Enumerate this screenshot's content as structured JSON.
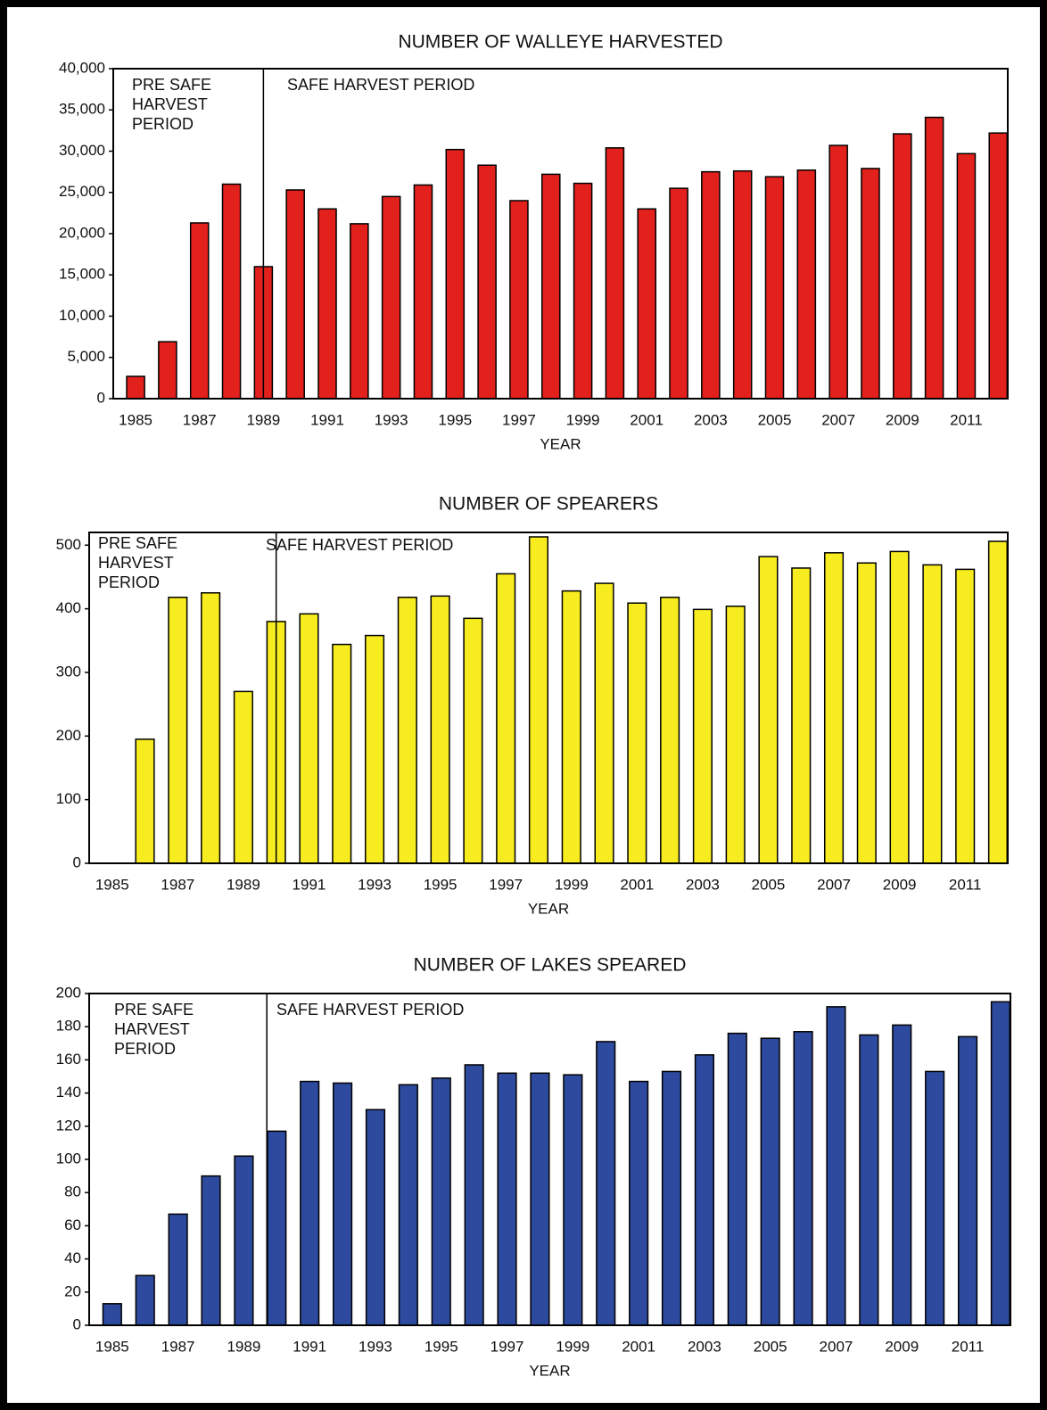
{
  "chart_data": [
    {
      "type": "bar",
      "title": "NUMBER OF WALLEYE HARVESTED",
      "x_label": "YEAR",
      "color": "#e3211c",
      "grid": false,
      "categories": [
        "1985",
        null,
        "1987",
        null,
        "1989",
        null,
        "1991",
        null,
        "1993",
        null,
        "1995",
        null,
        "1997",
        null,
        "1999",
        null,
        "2001",
        null,
        "2003",
        null,
        "2005",
        null,
        "2007",
        null,
        "2009",
        null,
        "2011",
        null
      ],
      "values": [
        2700,
        6900,
        21300,
        26000,
        16000,
        25300,
        23000,
        21200,
        24500,
        25900,
        30200,
        28300,
        24000,
        27200,
        26100,
        30400,
        23000,
        25500,
        27500,
        27600,
        26900,
        27700,
        30700,
        27900,
        32100,
        34100,
        29700,
        32200
      ],
      "ylim": [
        0,
        40000
      ],
      "yticks": [
        0,
        {
          "value": 5000,
          "label": "5,000"
        },
        {
          "value": 10000,
          "label": "10,000"
        },
        {
          "value": 15000,
          "label": "15,000"
        },
        {
          "value": 20000,
          "label": "20,000"
        },
        {
          "value": 25000,
          "label": "25,000"
        },
        {
          "value": 30000,
          "label": "30,000"
        },
        {
          "value": 35000,
          "label": "35,000"
        },
        {
          "value": 40000,
          "label": "40,000"
        }
      ],
      "annotations": [
        {
          "lines": [
            "PRE SAFE",
            "HARVEST",
            "PERIOD"
          ]
        },
        {
          "lines": [
            "SAFE HARVEST PERIOD"
          ]
        }
      ]
    },
    {
      "type": "bar",
      "title": "NUMBER OF SPEARERS",
      "x_label": "YEAR",
      "color": "#f7ec1f",
      "grid": false,
      "categories": [
        "1985",
        null,
        "1987",
        null,
        "1989",
        null,
        "1991",
        null,
        "1993",
        null,
        "1995",
        null,
        "1997",
        null,
        "1999",
        null,
        "2001",
        null,
        "2003",
        null,
        "2005",
        null,
        "2007",
        null,
        "2009",
        null,
        "2011",
        null
      ],
      "values": [
        null,
        195,
        418,
        425,
        270,
        380,
        392,
        344,
        358,
        418,
        420,
        385,
        455,
        513,
        428,
        440,
        409,
        418,
        399,
        404,
        482,
        464,
        488,
        472,
        490,
        469,
        462,
        506
      ],
      "ylim": [
        0,
        520
      ],
      "yticks": [
        0,
        100,
        200,
        300,
        400,
        500
      ],
      "annotations": [
        {
          "lines": [
            "PRE SAFE",
            "HARVEST",
            "PERIOD"
          ]
        },
        {
          "lines": [
            "SAFE HARVEST PERIOD"
          ]
        }
      ]
    },
    {
      "type": "bar",
      "title": "NUMBER OF LAKES SPEARED",
      "x_label": "YEAR",
      "color": "#2e4a9e",
      "grid": false,
      "categories": [
        "1985",
        null,
        "1987",
        null,
        "1989",
        null,
        "1991",
        null,
        "1993",
        null,
        "1995",
        null,
        "1997",
        null,
        "1999",
        null,
        "2001",
        null,
        "2003",
        null,
        "2005",
        null,
        "2007",
        null,
        "2009",
        null,
        "2011",
        null
      ],
      "values": [
        13,
        30,
        67,
        90,
        102,
        117,
        147,
        146,
        130,
        145,
        149,
        157,
        152,
        152,
        151,
        171,
        147,
        153,
        163,
        176,
        173,
        177,
        192,
        175,
        181,
        153,
        174,
        195
      ],
      "ylim": [
        0,
        200
      ],
      "yticks": [
        0,
        20,
        40,
        60,
        80,
        100,
        120,
        140,
        160,
        180,
        200
      ],
      "annotations": [
        {
          "lines": [
            "PRE SAFE",
            "HARVEST",
            "PERIOD"
          ]
        },
        {
          "lines": [
            "SAFE HARVEST PERIOD"
          ]
        }
      ]
    }
  ]
}
